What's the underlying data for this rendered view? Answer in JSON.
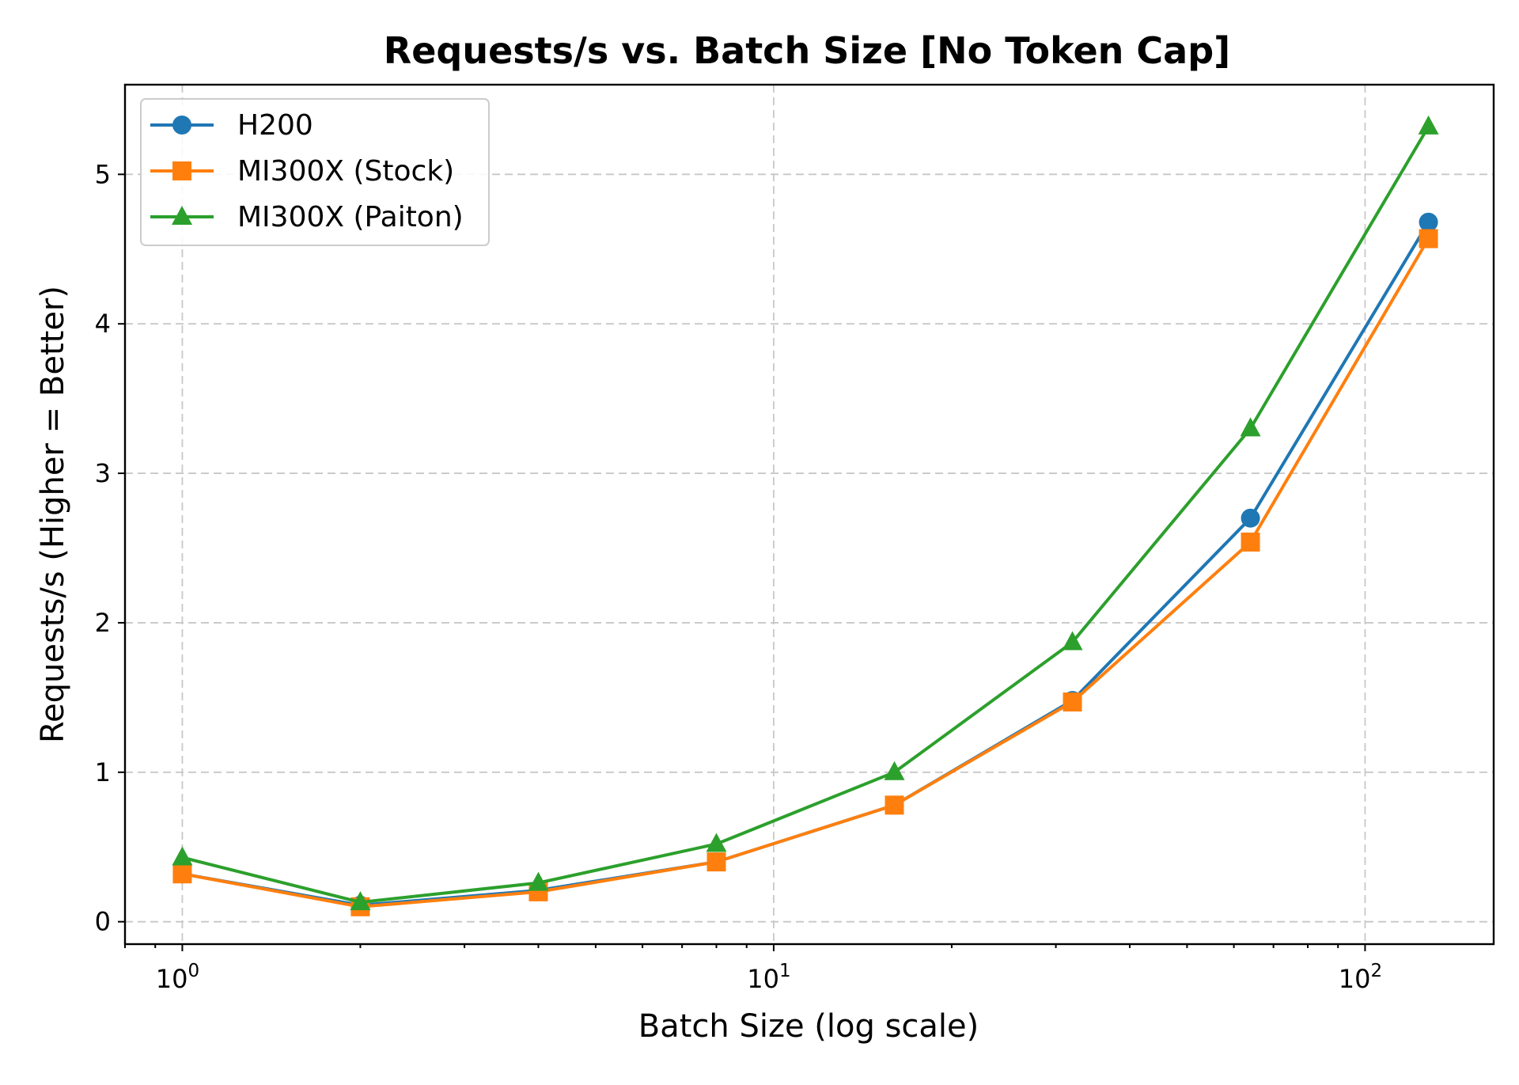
{
  "chart_data": {
    "type": "line",
    "title": "Requests/s vs. Batch Size [No Token Cap]",
    "xlabel": "Batch Size (log scale)",
    "ylabel": "Requests/s (Higher = Better)",
    "xscale": "log",
    "xlim": [
      0.8,
      165
    ],
    "ylim": [
      -0.15,
      5.6
    ],
    "x": [
      1,
      2,
      4,
      8,
      16,
      32,
      64,
      128
    ],
    "x_ticks": [
      {
        "value": 1,
        "base": "10",
        "exp": "0"
      },
      {
        "value": 10,
        "base": "10",
        "exp": "1"
      },
      {
        "value": 100,
        "base": "10",
        "exp": "2"
      }
    ],
    "y_ticks": [
      0,
      1,
      2,
      3,
      4,
      5
    ],
    "grid": true,
    "legend_position": "upper-left",
    "series": [
      {
        "name": "H200",
        "color": "#1f77b4",
        "marker": "circle",
        "values": [
          0.32,
          0.11,
          0.21,
          0.4,
          0.78,
          1.48,
          2.7,
          4.68
        ]
      },
      {
        "name": "MI300X (Stock)",
        "color": "#ff7f0e",
        "marker": "square",
        "values": [
          0.32,
          0.1,
          0.2,
          0.4,
          0.78,
          1.47,
          2.54,
          4.57
        ]
      },
      {
        "name": "MI300X (Paiton)",
        "color": "#2ca02c",
        "marker": "triangle",
        "values": [
          0.43,
          0.13,
          0.26,
          0.52,
          1.0,
          1.87,
          3.3,
          5.32
        ]
      }
    ]
  }
}
